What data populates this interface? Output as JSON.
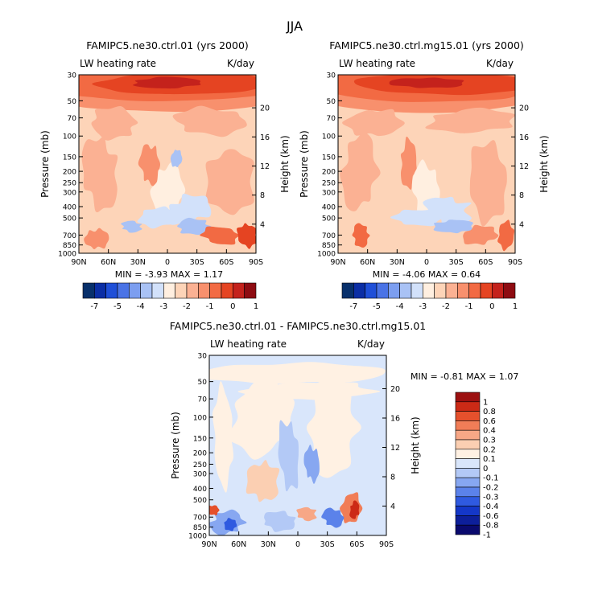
{
  "page_title": "JJA",
  "colors": {
    "scale_a": [
      "#08306b",
      "#0b2ea5",
      "#1f4fd8",
      "#4a73e6",
      "#7c9ef0",
      "#a9c2f5",
      "#d2e1fa",
      "#ffefe0",
      "#fdd4b8",
      "#fbb193",
      "#f8906d",
      "#f26a43",
      "#e54422",
      "#c4221c",
      "#8e0c12"
    ],
    "scale_b": [
      "#0a0a6e",
      "#0d1f9a",
      "#1437c8",
      "#2f5ae0",
      "#5b82ea",
      "#87a7f1",
      "#b3c9f6",
      "#d9e6fb",
      "#fff1e3",
      "#fbcfb2",
      "#f7a786",
      "#f17d57",
      "#e5502c",
      "#cc2a16",
      "#9c1010"
    ]
  },
  "chart_data": [
    {
      "type": "heatmap",
      "title": "FAMIPC5.ne30.ctrl.01 (yrs 2000)",
      "left_label": "LW heating rate",
      "right_label": "K/day",
      "xlabel": "",
      "ylabel": "Pressure (mb)",
      "y2label": "Height (km)",
      "x_ticks": [
        "90N",
        "60N",
        "30N",
        "0",
        "30S",
        "60S",
        "90S"
      ],
      "y_ticks": [
        30,
        50,
        70,
        100,
        150,
        200,
        250,
        300,
        400,
        500,
        700,
        850,
        1000
      ],
      "height_ticks": [
        20,
        16,
        12,
        8,
        4
      ],
      "stats": "MIN =   -3.93   MAX =    1.17",
      "colorbar_labels": [
        "-7",
        "-5",
        "-4",
        "-3",
        "-2",
        "-1",
        "0",
        "1"
      ]
    },
    {
      "type": "heatmap",
      "title": "FAMIPC5.ne30.ctrl.mg15.01 (yrs 2000)",
      "left_label": "LW heating rate",
      "right_label": "K/day",
      "xlabel": "",
      "ylabel": "Pressure (mb)",
      "y2label": "Height (km)",
      "x_ticks": [
        "90N",
        "60N",
        "30N",
        "0",
        "30S",
        "60S",
        "90S"
      ],
      "y_ticks": [
        30,
        50,
        70,
        100,
        150,
        200,
        250,
        300,
        400,
        500,
        700,
        850,
        1000
      ],
      "height_ticks": [
        20,
        16,
        12,
        8,
        4
      ],
      "stats": "MIN =   -4.06   MAX =    0.64",
      "colorbar_labels": [
        "-7",
        "-5",
        "-4",
        "-3",
        "-2",
        "-1",
        "0",
        "1"
      ]
    },
    {
      "type": "heatmap",
      "title": "FAMIPC5.ne30.ctrl.01 - FAMIPC5.ne30.ctrl.mg15.01",
      "left_label": "LW heating rate",
      "right_label": "K/day",
      "xlabel": "",
      "ylabel": "Pressure (mb)",
      "y2label": "Height (km)",
      "x_ticks": [
        "90N",
        "60N",
        "30N",
        "0",
        "30S",
        "60S",
        "90S"
      ],
      "y_ticks": [
        30,
        50,
        70,
        100,
        150,
        200,
        250,
        300,
        400,
        500,
        700,
        850,
        1000
      ],
      "height_ticks": [
        20,
        16,
        12,
        8,
        4
      ],
      "stats": "MIN =   -0.81   MAX =    1.07",
      "colorbar_labels": [
        "1",
        "0.8",
        "0.6",
        "0.4",
        "0.3",
        "0.2",
        "0.1",
        "0",
        "-0.1",
        "-0.2",
        "-0.3",
        "-0.4",
        "-0.6",
        "-0.8",
        "-1"
      ]
    }
  ]
}
